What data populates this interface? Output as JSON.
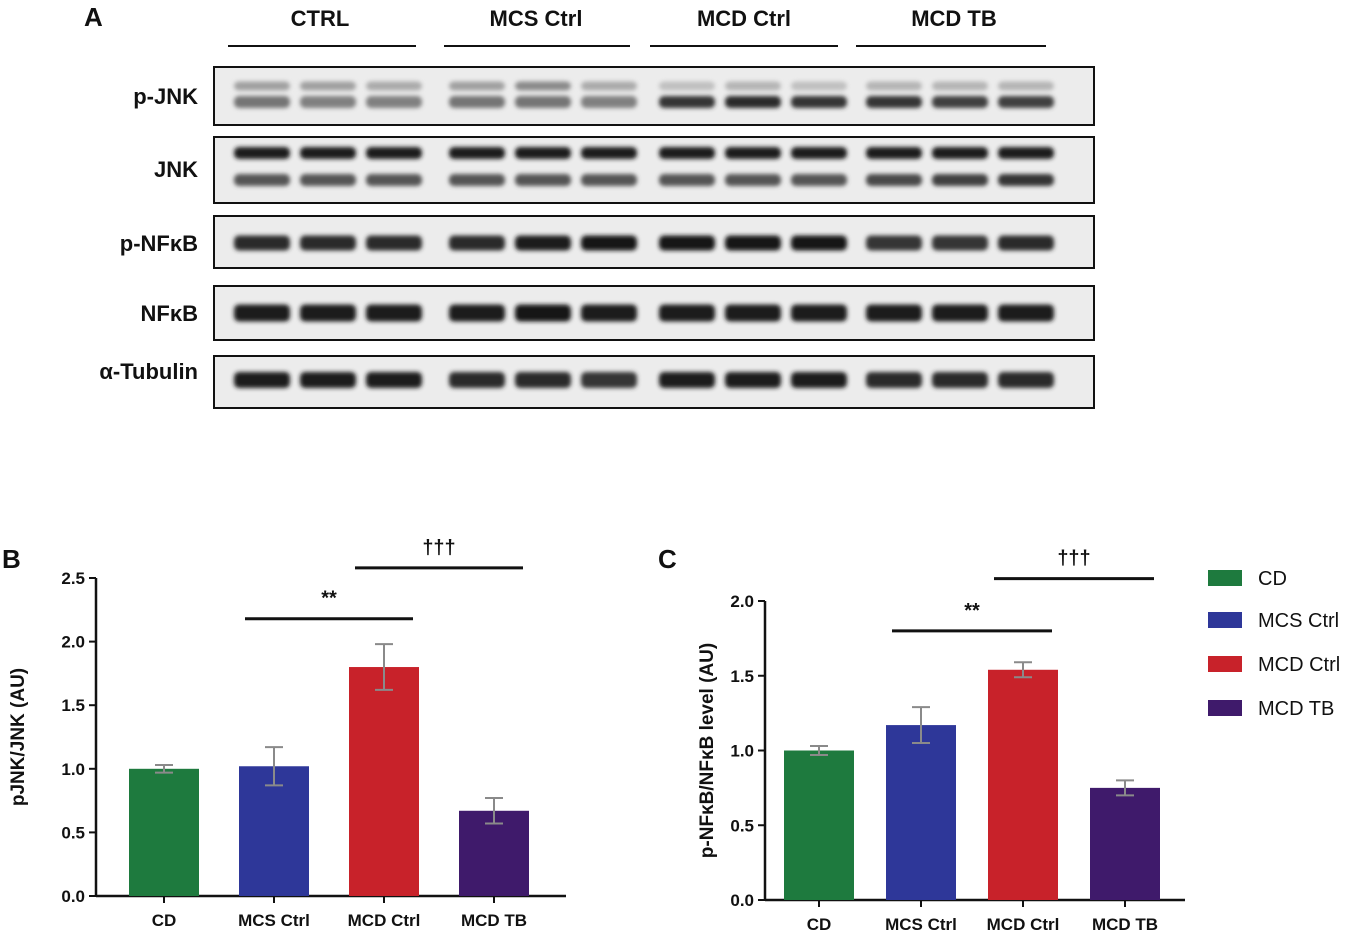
{
  "colors": {
    "CD": "#1e7a3e",
    "MCS Ctrl": "#2e3799",
    "MCD Ctrl": "#c8222a",
    "MCD TB": "#3f1a6b",
    "axis": "#111111"
  },
  "blot": {
    "panel_letter": "A",
    "groups": [
      "CTRL",
      "MCS Ctrl",
      "MCD Ctrl",
      "MCD TB"
    ],
    "lanes_per_group": 3,
    "rows": [
      {
        "label": "p-JNK",
        "bands": 2,
        "intensity": [
          [
            0.35,
            0.35,
            0.3,
            0.35,
            0.45,
            0.3,
            0.2,
            0.25,
            0.2,
            0.25,
            0.25,
            0.25
          ],
          [
            0.55,
            0.5,
            0.5,
            0.55,
            0.55,
            0.5,
            0.85,
            0.9,
            0.85,
            0.85,
            0.8,
            0.8
          ]
        ]
      },
      {
        "label": "JNK",
        "bands": 2,
        "intensity": [
          [
            0.95,
            0.95,
            0.95,
            0.95,
            0.95,
            0.95,
            0.95,
            0.95,
            0.95,
            0.95,
            0.95,
            0.95
          ],
          [
            0.7,
            0.7,
            0.7,
            0.7,
            0.7,
            0.7,
            0.7,
            0.7,
            0.7,
            0.75,
            0.8,
            0.85
          ]
        ]
      },
      {
        "label": "p-NFκB",
        "bands": 1,
        "intensity": [
          [
            0.9,
            0.9,
            0.9,
            0.9,
            0.95,
            1.0,
            1.0,
            1.0,
            1.0,
            0.85,
            0.85,
            0.9
          ]
        ]
      },
      {
        "label": "NFκB",
        "bands": 1,
        "intensity": [
          [
            0.95,
            0.95,
            0.95,
            0.95,
            1.0,
            0.95,
            0.95,
            0.95,
            0.95,
            0.95,
            0.95,
            0.95
          ]
        ]
      },
      {
        "label": "α-Tubulin",
        "bands": 1,
        "intensity": [
          [
            0.95,
            0.95,
            0.95,
            0.9,
            0.9,
            0.85,
            0.95,
            0.95,
            0.95,
            0.9,
            0.9,
            0.9
          ]
        ]
      }
    ]
  },
  "chart_data": [
    {
      "panel_letter": "B",
      "type": "bar",
      "categories": [
        "CD",
        "MCS Ctrl",
        "MCD Ctrl",
        "MCD TB"
      ],
      "values": [
        1.0,
        1.02,
        1.8,
        0.67
      ],
      "errors": [
        0.03,
        0.15,
        0.18,
        0.1
      ],
      "ylabel": "pJNK/JNK (AU)",
      "ylim": [
        0,
        2.5
      ],
      "yticks": [
        "0.0",
        "0.5",
        "1.0",
        "1.5",
        "2.0",
        "2.5"
      ],
      "significance": [
        {
          "from": 1,
          "to": 2,
          "label": "**",
          "y": 2.18
        },
        {
          "from": 2,
          "to": 3,
          "label": "†††",
          "y": 2.58
        }
      ]
    },
    {
      "panel_letter": "C",
      "type": "bar",
      "categories": [
        "CD",
        "MCS Ctrl",
        "MCD Ctrl",
        "MCD TB"
      ],
      "values": [
        1.0,
        1.17,
        1.54,
        0.75
      ],
      "errors": [
        0.03,
        0.12,
        0.05,
        0.05
      ],
      "ylabel": "p-NFκB/NFκB level (AU)",
      "ylim": [
        0,
        2.0
      ],
      "yticks": [
        "0.0",
        "0.5",
        "1.0",
        "1.5",
        "2.0"
      ],
      "significance": [
        {
          "from": 1,
          "to": 2,
          "label": "**",
          "y": 1.8
        },
        {
          "from": 2,
          "to": 3,
          "label": "†††",
          "y": 2.15
        }
      ]
    }
  ],
  "legend": {
    "entries": [
      "CD",
      "MCS Ctrl",
      "MCD Ctrl",
      "MCD TB"
    ]
  }
}
